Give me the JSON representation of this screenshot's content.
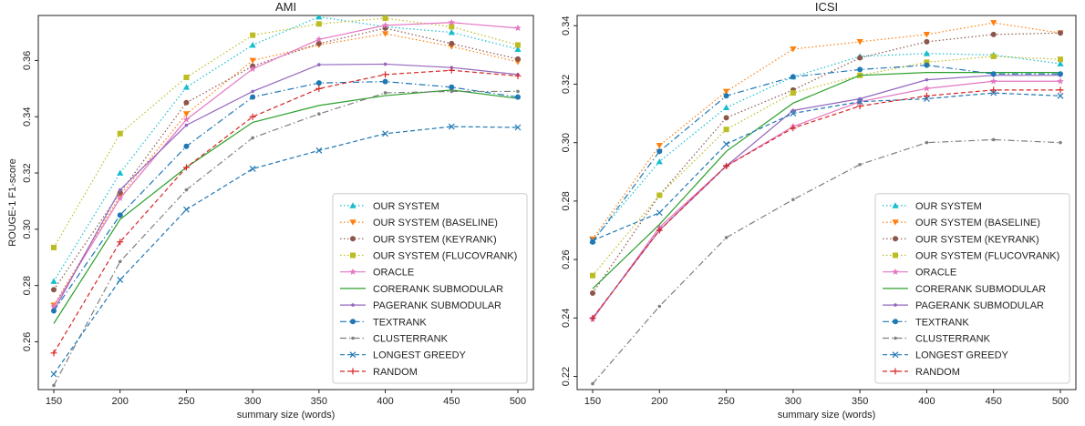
{
  "chart_data": [
    {
      "type": "line",
      "title": "AMI",
      "xlabel": "summary size (words)",
      "ylabel": "ROUGE-1 F1-score",
      "x": [
        150,
        200,
        250,
        300,
        350,
        400,
        450,
        500
      ],
      "xticks": [
        "150",
        "200",
        "250",
        "300",
        "350",
        "400",
        "450",
        "500"
      ],
      "ylim": [
        0.243,
        0.376
      ],
      "yticks": [
        0.26,
        0.28,
        0.3,
        0.32,
        0.34,
        0.36
      ],
      "ytick_labels": [
        "0.26",
        "0.28",
        "0.30",
        "0.32",
        "0.34",
        "0.36"
      ],
      "grid": false,
      "legend_position": "lower-right",
      "series": [
        {
          "name": "OUR SYSTEM",
          "color": "#17becf",
          "style": "dotted",
          "marker": "triangle-up",
          "values": [
            0.2815,
            0.32,
            0.3505,
            0.3655,
            0.3755,
            0.372,
            0.37,
            0.364
          ]
        },
        {
          "name": "OUR SYSTEM (BASELINE)",
          "color": "#ff7f0e",
          "style": "dotted",
          "marker": "triangle-down",
          "values": [
            0.273,
            0.312,
            0.341,
            0.36,
            0.3655,
            0.3695,
            0.365,
            0.3595
          ]
        },
        {
          "name": "OUR SYSTEM (KEYRANK)",
          "color": "#8c564b",
          "style": "dotted",
          "marker": "circle",
          "values": [
            0.2785,
            0.313,
            0.345,
            0.358,
            0.366,
            0.3715,
            0.366,
            0.3605
          ]
        },
        {
          "name": "OUR SYSTEM (FLUCOVRANK)",
          "color": "#bcbd22",
          "style": "dotted",
          "marker": "square",
          "values": [
            0.2935,
            0.334,
            0.354,
            0.369,
            0.373,
            0.375,
            0.372,
            0.3655
          ]
        },
        {
          "name": "ORACLE",
          "color": "#e377c2",
          "style": "solid",
          "marker": "star",
          "values": [
            0.2725,
            0.311,
            0.339,
            0.357,
            0.3675,
            0.3725,
            0.3735,
            0.3715
          ]
        },
        {
          "name": "CORERANK SUBMODULAR",
          "color": "#2ca02c",
          "style": "solid",
          "marker": "none",
          "values": [
            0.2665,
            0.3035,
            0.322,
            0.338,
            0.344,
            0.3475,
            0.3495,
            0.3465
          ]
        },
        {
          "name": "PAGERANK SUBMODULAR",
          "color": "#9467bd",
          "style": "solid",
          "marker": "point",
          "values": [
            0.271,
            0.314,
            0.337,
            0.349,
            0.3585,
            0.3587,
            0.3575,
            0.355
          ]
        },
        {
          "name": "TEXTRANK",
          "color": "#1f77b4",
          "style": "dashdot",
          "marker": "circle",
          "values": [
            0.271,
            0.305,
            0.3295,
            0.347,
            0.352,
            0.3525,
            0.3505,
            0.347
          ]
        },
        {
          "name": "CLUSTERRANK",
          "color": "#7f7f7f",
          "style": "dashdot",
          "marker": "point",
          "values": [
            0.2445,
            0.2885,
            0.314,
            0.3325,
            0.341,
            0.3485,
            0.349,
            0.349
          ]
        },
        {
          "name": "LONGEST GREEDY",
          "color": "#1f77b4",
          "style": "dashed",
          "marker": "x",
          "values": [
            0.2485,
            0.282,
            0.307,
            0.3215,
            0.328,
            0.334,
            0.3365,
            0.3362
          ]
        },
        {
          "name": "RANDOM",
          "color": "#d62728",
          "style": "dashed",
          "marker": "plus",
          "values": [
            0.256,
            0.2955,
            0.322,
            0.34,
            0.35,
            0.355,
            0.3565,
            0.3545
          ]
        }
      ]
    },
    {
      "type": "line",
      "title": "ICSI",
      "xlabel": "summary size (words)",
      "ylabel": "",
      "x": [
        150,
        200,
        250,
        300,
        350,
        400,
        450,
        500
      ],
      "xticks": [
        "150",
        "200",
        "250",
        "300",
        "350",
        "400",
        "450",
        "500"
      ],
      "ylim": [
        0.2155,
        0.3435
      ],
      "yticks": [
        0.22,
        0.24,
        0.26,
        0.28,
        0.3,
        0.32,
        0.34
      ],
      "ytick_labels": [
        "0.22",
        "0.24",
        "0.26",
        "0.28",
        "0.30",
        "0.32",
        "0.34"
      ],
      "grid": false,
      "legend_position": "lower-right",
      "series": [
        {
          "name": "OUR SYSTEM",
          "color": "#17becf",
          "style": "dotted",
          "marker": "triangle-up",
          "values": [
            0.2665,
            0.2935,
            0.312,
            0.3225,
            0.3295,
            0.3305,
            0.33,
            0.327
          ]
        },
        {
          "name": "OUR SYSTEM (BASELINE)",
          "color": "#ff7f0e",
          "style": "dotted",
          "marker": "triangle-down",
          "values": [
            0.267,
            0.299,
            0.3175,
            0.332,
            0.3345,
            0.337,
            0.341,
            0.3375
          ]
        },
        {
          "name": "OUR SYSTEM (KEYRANK)",
          "color": "#8c564b",
          "style": "dotted",
          "marker": "circle",
          "values": [
            0.2485,
            0.282,
            0.3085,
            0.318,
            0.329,
            0.3345,
            0.337,
            0.3375
          ]
        },
        {
          "name": "OUR SYSTEM (FLUCOVRANK)",
          "color": "#bcbd22",
          "style": "dotted",
          "marker": "square",
          "values": [
            0.2545,
            0.282,
            0.3045,
            0.317,
            0.323,
            0.3275,
            0.3295,
            0.3285
          ]
        },
        {
          "name": "ORACLE",
          "color": "#e377c2",
          "style": "solid",
          "marker": "star",
          "values": [
            0.2395,
            0.271,
            0.292,
            0.3055,
            0.314,
            0.3185,
            0.321,
            0.321
          ]
        },
        {
          "name": "CORERANK SUBMODULAR",
          "color": "#2ca02c",
          "style": "solid",
          "marker": "none",
          "values": [
            0.25,
            0.272,
            0.297,
            0.3135,
            0.323,
            0.324,
            0.324,
            0.324
          ]
        },
        {
          "name": "PAGERANK SUBMODULAR",
          "color": "#9467bd",
          "style": "solid",
          "marker": "point",
          "values": [
            0.24,
            0.27,
            0.292,
            0.311,
            0.315,
            0.3215,
            0.323,
            0.323
          ]
        },
        {
          "name": "TEXTRANK",
          "color": "#1f77b4",
          "style": "dashdot",
          "marker": "circle",
          "values": [
            0.266,
            0.297,
            0.316,
            0.3225,
            0.325,
            0.3265,
            0.3235,
            0.3235
          ]
        },
        {
          "name": "CLUSTERRANK",
          "color": "#7f7f7f",
          "style": "dashdot",
          "marker": "point",
          "values": [
            0.2175,
            0.244,
            0.2675,
            0.2805,
            0.2925,
            0.3,
            0.301,
            0.3
          ]
        },
        {
          "name": "LONGEST GREEDY",
          "color": "#1f77b4",
          "style": "dashed",
          "marker": "x",
          "values": [
            0.2665,
            0.276,
            0.2995,
            0.31,
            0.314,
            0.315,
            0.317,
            0.316
          ]
        },
        {
          "name": "RANDOM",
          "color": "#d62728",
          "style": "dashed",
          "marker": "plus",
          "values": [
            0.24,
            0.27,
            0.292,
            0.305,
            0.3125,
            0.316,
            0.318,
            0.318
          ]
        }
      ]
    }
  ]
}
